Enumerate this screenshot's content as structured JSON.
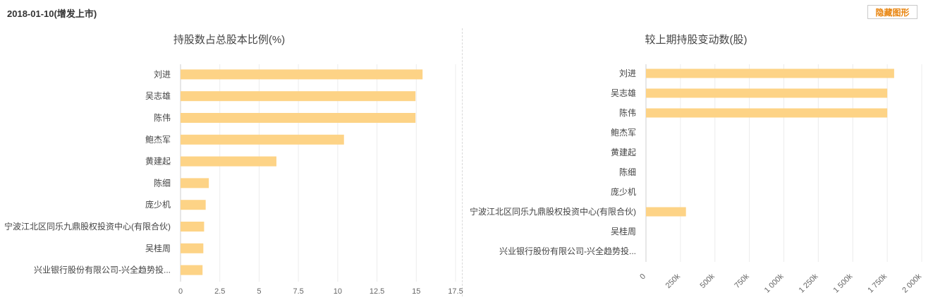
{
  "header": {
    "title": "2018-01-10(增发上市)",
    "toggle_label": "隐藏图形",
    "accent_color": "#e8830c"
  },
  "bar_color": "#fdd386",
  "chart_data": [
    {
      "type": "bar",
      "orientation": "horizontal",
      "title": "持股数占总股本比例(%)",
      "categories": [
        "刘进",
        "吴志雄",
        "陈伟",
        "鲍杰军",
        "黄建起",
        "陈细",
        "庞少机",
        "宁波江北区同乐九鼎股权投资中心(有限合伙)",
        "吴桂周",
        "兴业银行股份有限公司-兴全趋势投..."
      ],
      "values": [
        15.4,
        14.95,
        14.95,
        10.4,
        6.1,
        1.8,
        1.6,
        1.5,
        1.45,
        1.4
      ],
      "xlim": [
        0,
        17.5
      ],
      "ticks": [
        0,
        2.5,
        5,
        7.5,
        10,
        12.5,
        15,
        17.5
      ],
      "tick_labels": [
        "0",
        "2.5",
        "5",
        "7.5",
        "10",
        "12.5",
        "15",
        "17.5"
      ],
      "grid": true
    },
    {
      "type": "bar",
      "orientation": "horizontal",
      "title": "较上期持股变动数(股)",
      "categories": [
        "刘进",
        "吴志雄",
        "陈伟",
        "鲍杰军",
        "黄建起",
        "陈细",
        "庞少机",
        "宁波江北区同乐九鼎股权投资中心(有限合伙)",
        "吴桂周",
        "兴业银行股份有限公司-兴全趋势投..."
      ],
      "values": [
        1800000,
        1750000,
        1750000,
        0,
        0,
        0,
        0,
        290000,
        0,
        0
      ],
      "xlim": [
        0,
        2000000
      ],
      "ticks": [
        0,
        250000,
        500000,
        750000,
        1000000,
        1250000,
        1500000,
        1750000,
        2000000
      ],
      "tick_labels": [
        "0",
        "250k",
        "500k",
        "750k",
        "1 000k",
        "1 250k",
        "1 500k",
        "1 750k",
        "2 000k"
      ],
      "grid": true
    }
  ]
}
